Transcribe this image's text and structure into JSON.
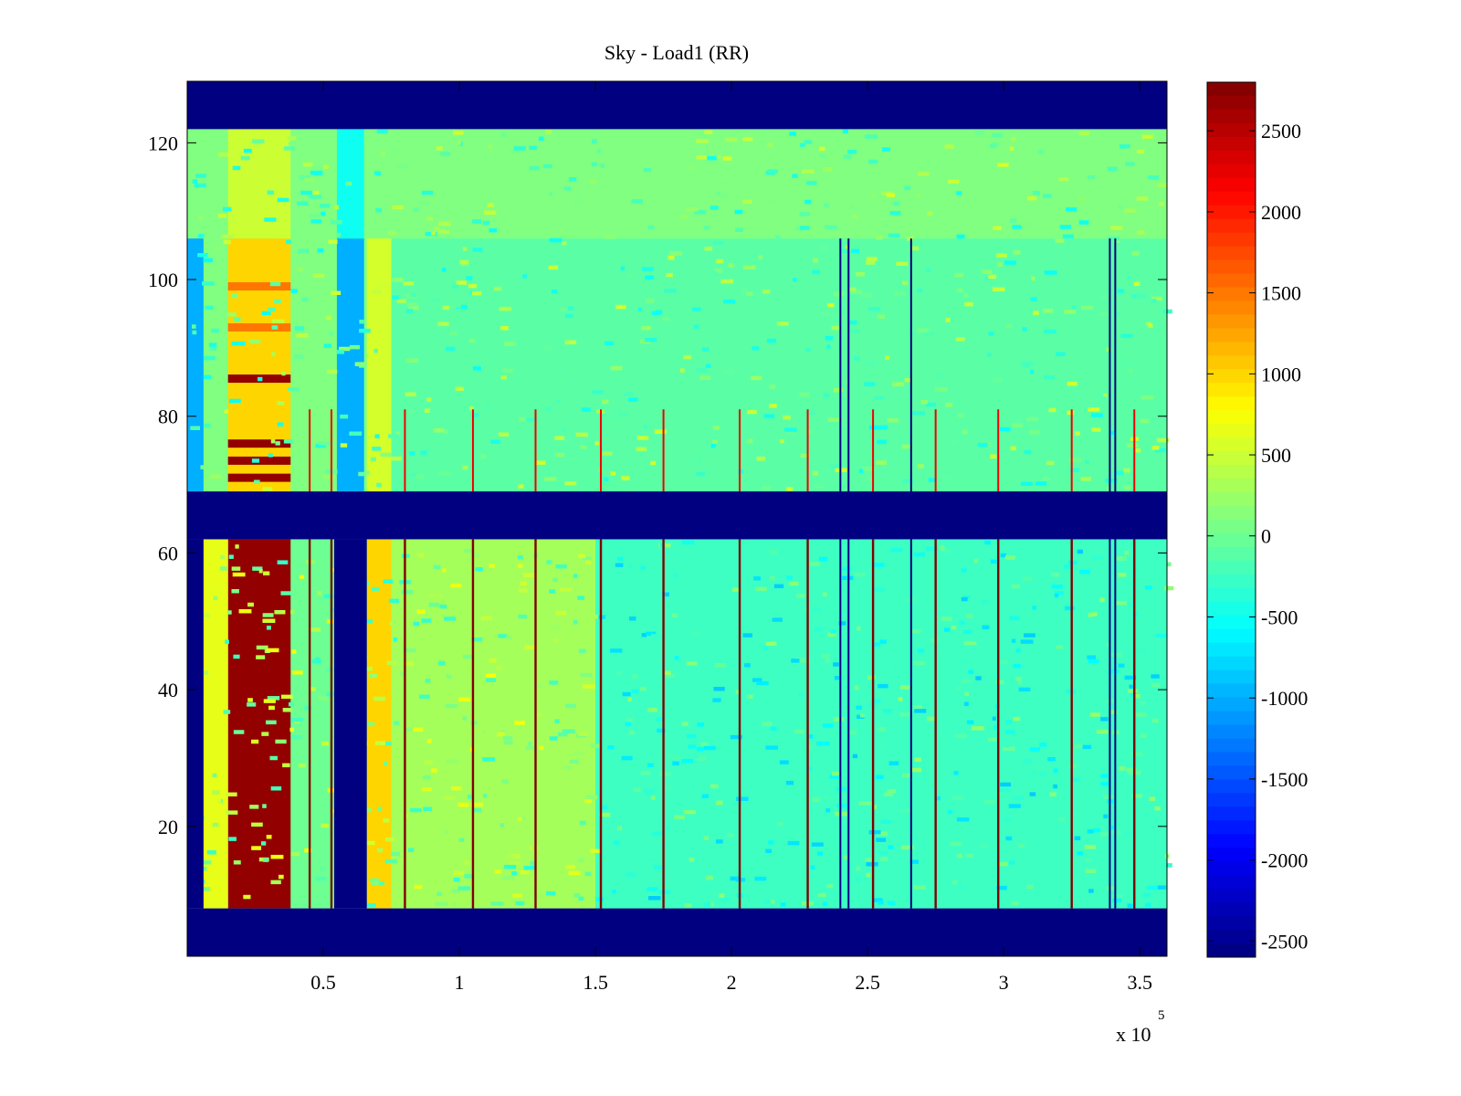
{
  "chart_data": {
    "type": "heatmap",
    "title": "Sky - Load1 (RR)",
    "xlabel": "",
    "ylabel": "",
    "colormap": "jet",
    "x_exponent_label": "x 10",
    "x_exponent_power": "5",
    "xlim": [
      0,
      360000
    ],
    "ylim": [
      1,
      129
    ],
    "clim": [
      -2600,
      2800
    ],
    "x_ticks": [
      {
        "value": 50000,
        "label": "0.5"
      },
      {
        "value": 100000,
        "label": "1"
      },
      {
        "value": 150000,
        "label": "1.5"
      },
      {
        "value": 200000,
        "label": "2"
      },
      {
        "value": 250000,
        "label": "2.5"
      },
      {
        "value": 300000,
        "label": "3"
      },
      {
        "value": 350000,
        "label": "3.5"
      }
    ],
    "y_ticks": [
      {
        "value": 20,
        "label": "20"
      },
      {
        "value": 40,
        "label": "40"
      },
      {
        "value": 60,
        "label": "60"
      },
      {
        "value": 80,
        "label": "80"
      },
      {
        "value": 100,
        "label": "100"
      },
      {
        "value": 120,
        "label": "120"
      }
    ],
    "colorbar_ticks": [
      {
        "value": 2500,
        "label": "2500"
      },
      {
        "value": 2000,
        "label": "2000"
      },
      {
        "value": 1500,
        "label": "1500"
      },
      {
        "value": 1000,
        "label": "1000"
      },
      {
        "value": 500,
        "label": "500"
      },
      {
        "value": 0,
        "label": "0"
      },
      {
        "value": -500,
        "label": "-500"
      },
      {
        "value": -1000,
        "label": "-1000"
      },
      {
        "value": -1500,
        "label": "-1500"
      },
      {
        "value": -2000,
        "label": "-2000"
      },
      {
        "value": -2500,
        "label": "-2500"
      }
    ],
    "masked_channel_ranges": [
      [
        1,
        8
      ],
      [
        62,
        69
      ],
      [
        122,
        129
      ]
    ],
    "upper_band_channels": [
      69,
      122
    ],
    "lower_band_channels": [
      8,
      62
    ],
    "masked_time_ranges_lower": [
      [
        0,
        6000
      ],
      [
        54000,
        66000
      ]
    ],
    "background_value_upper": 100,
    "background_value_lower": 0,
    "features": [
      {
        "x_range": [
          15000,
          38000
        ],
        "y_range": [
          8,
          62
        ],
        "value": 2700
      },
      {
        "x_range": [
          15000,
          38000
        ],
        "y_range": [
          69,
          106
        ],
        "value": 1000
      },
      {
        "x_range": [
          15000,
          38000
        ],
        "y_range": [
          106,
          122
        ],
        "value": 500
      },
      {
        "x_range": [
          6000,
          15000
        ],
        "y_range": [
          8,
          62
        ],
        "value": 650
      },
      {
        "x_range": [
          0,
          6000
        ],
        "y_range": [
          69,
          106
        ],
        "value": -1000
      },
      {
        "x_range": [
          55000,
          65000
        ],
        "y_range": [
          69,
          106
        ],
        "value": -1000
      },
      {
        "x_range": [
          55000,
          65000
        ],
        "y_range": [
          106,
          122
        ],
        "value": -500
      },
      {
        "x_range": [
          66000,
          75000
        ],
        "y_range": [
          8,
          62
        ],
        "value": 1000
      },
      {
        "x_range": [
          66000,
          75000
        ],
        "y_range": [
          69,
          106
        ],
        "value": 550
      },
      {
        "x_range": [
          75000,
          150000
        ],
        "y_range": [
          8,
          62
        ],
        "value": 300
      },
      {
        "x_range": [
          150000,
          360000
        ],
        "y_range": [
          8,
          62
        ],
        "value": -250
      },
      {
        "x_range": [
          75000,
          360000
        ],
        "y_range": [
          69,
          106
        ],
        "value": -100
      }
    ],
    "rfi_lines_x": [
      45000,
      53000,
      80000,
      105000,
      128000,
      152000,
      175000,
      203000,
      228000,
      252000,
      275000,
      298000,
      325000,
      348000
    ],
    "rfi_line_value": 2800,
    "dark_lines_x": [
      240000,
      243000,
      266000,
      339000,
      341000
    ],
    "dark_line_value": -2600,
    "hot_rows_upper": [
      {
        "y": 71,
        "value": 2700
      },
      {
        "y": 73.5,
        "value": 2700
      },
      {
        "y": 76,
        "value": 2700
      },
      {
        "y": 85.5,
        "value": 2700
      },
      {
        "y": 93,
        "value": 1500
      },
      {
        "y": 99,
        "value": 1500
      }
    ]
  }
}
